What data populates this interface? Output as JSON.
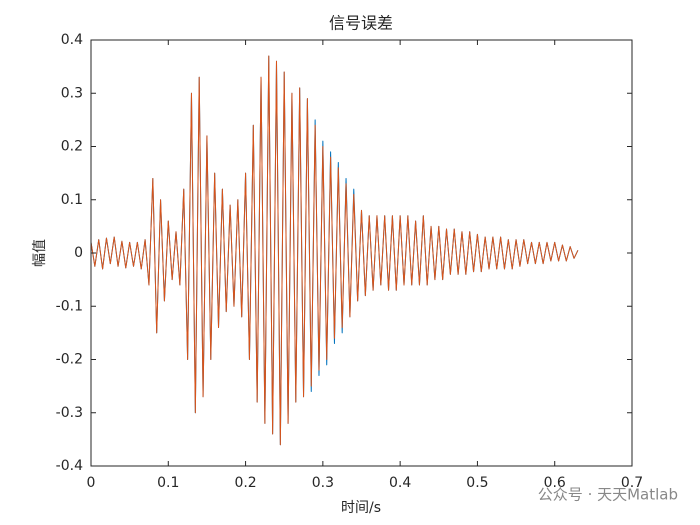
{
  "chart_data": {
    "type": "line",
    "title": "信号误差",
    "xlabel": "时间/s",
    "ylabel": "幅值",
    "watermark": "公众号 · 天天Matlab",
    "xlim": [
      0,
      0.7
    ],
    "xticks": [
      0,
      0.1,
      0.2,
      0.3,
      0.4,
      0.5,
      0.6,
      0.7
    ],
    "ylim": [
      -0.4,
      0.4
    ],
    "yticks": [
      -0.4,
      -0.3,
      -0.2,
      -0.1,
      0,
      0.1,
      0.2,
      0.3,
      0.4
    ],
    "grid": false,
    "x": [
      0,
      0.005,
      0.01,
      0.015,
      0.02,
      0.025,
      0.03,
      0.035,
      0.04,
      0.045,
      0.05,
      0.055,
      0.06,
      0.065,
      0.07,
      0.075,
      0.08,
      0.085,
      0.09,
      0.095,
      0.1,
      0.105,
      0.11,
      0.115,
      0.12,
      0.125,
      0.13,
      0.135,
      0.14,
      0.145,
      0.15,
      0.155,
      0.16,
      0.165,
      0.17,
      0.175,
      0.18,
      0.185,
      0.19,
      0.195,
      0.2,
      0.205,
      0.21,
      0.215,
      0.22,
      0.225,
      0.23,
      0.235,
      0.24,
      0.245,
      0.25,
      0.255,
      0.26,
      0.265,
      0.27,
      0.275,
      0.28,
      0.285,
      0.29,
      0.295,
      0.3,
      0.305,
      0.31,
      0.315,
      0.32,
      0.325,
      0.33,
      0.335,
      0.34,
      0.345,
      0.35,
      0.355,
      0.36,
      0.365,
      0.37,
      0.375,
      0.38,
      0.385,
      0.39,
      0.395,
      0.4,
      0.405,
      0.41,
      0.415,
      0.42,
      0.425,
      0.43,
      0.435,
      0.44,
      0.445,
      0.45,
      0.455,
      0.46,
      0.465,
      0.47,
      0.475,
      0.48,
      0.485,
      0.49,
      0.495,
      0.5,
      0.505,
      0.51,
      0.515,
      0.52,
      0.525,
      0.53,
      0.535,
      0.54,
      0.545,
      0.55,
      0.555,
      0.56,
      0.565,
      0.57,
      0.575,
      0.58,
      0.585,
      0.59,
      0.595,
      0.6,
      0.605,
      0.61,
      0.615,
      0.62,
      0.625,
      0.63
    ],
    "series": [
      {
        "color": "#0072bd",
        "values": [
          0.02,
          -0.025,
          0.025,
          -0.03,
          0.028,
          -0.02,
          0.03,
          -0.025,
          0.022,
          -0.028,
          0.02,
          -0.025,
          0.02,
          -0.03,
          0.025,
          -0.06,
          0.14,
          -0.15,
          0.1,
          -0.09,
          0.06,
          -0.05,
          0.04,
          -0.06,
          0.12,
          -0.2,
          0.3,
          -0.3,
          0.33,
          -0.27,
          0.22,
          -0.2,
          0.15,
          -0.14,
          0.12,
          -0.11,
          0.09,
          -0.1,
          0.1,
          -0.12,
          0.15,
          -0.2,
          0.24,
          -0.28,
          0.33,
          -0.32,
          0.37,
          -0.34,
          0.36,
          -0.36,
          0.34,
          -0.32,
          0.3,
          -0.28,
          0.31,
          -0.27,
          0.29,
          -0.26,
          0.25,
          -0.23,
          0.21,
          -0.21,
          0.19,
          -0.17,
          0.17,
          -0.15,
          0.14,
          -0.12,
          0.12,
          -0.09,
          0.08,
          -0.08,
          0.07,
          -0.07,
          0.07,
          -0.06,
          0.07,
          -0.07,
          0.07,
          -0.07,
          0.07,
          -0.06,
          0.07,
          -0.06,
          0.06,
          -0.06,
          0.07,
          -0.06,
          0.05,
          -0.05,
          0.05,
          -0.05,
          0.045,
          -0.04,
          0.045,
          -0.04,
          0.04,
          -0.04,
          0.04,
          -0.035,
          0.035,
          -0.035,
          0.03,
          -0.03,
          0.03,
          -0.03,
          0.03,
          -0.03,
          0.025,
          -0.03,
          0.025,
          -0.025,
          0.025,
          -0.02,
          0.02,
          -0.02,
          0.02,
          -0.02,
          0.02,
          -0.015,
          0.02,
          -0.015,
          0.015,
          -0.015,
          0.012,
          -0.01,
          0.005
        ]
      },
      {
        "color": "#d95319",
        "values": [
          0.02,
          -0.025,
          0.025,
          -0.03,
          0.028,
          -0.02,
          0.03,
          -0.025,
          0.022,
          -0.028,
          0.02,
          -0.025,
          0.02,
          -0.03,
          0.025,
          -0.06,
          0.14,
          -0.15,
          0.1,
          -0.09,
          0.06,
          -0.05,
          0.04,
          -0.06,
          0.12,
          -0.2,
          0.3,
          -0.3,
          0.33,
          -0.27,
          0.22,
          -0.2,
          0.15,
          -0.14,
          0.12,
          -0.11,
          0.09,
          -0.1,
          0.1,
          -0.12,
          0.15,
          -0.2,
          0.24,
          -0.28,
          0.33,
          -0.32,
          0.37,
          -0.34,
          0.36,
          -0.36,
          0.34,
          -0.32,
          0.3,
          -0.28,
          0.31,
          -0.27,
          0.29,
          -0.25,
          0.24,
          -0.22,
          0.2,
          -0.2,
          0.18,
          -0.16,
          0.16,
          -0.14,
          0.13,
          -0.12,
          0.11,
          -0.09,
          0.08,
          -0.08,
          0.07,
          -0.07,
          0.07,
          -0.06,
          0.07,
          -0.07,
          0.07,
          -0.07,
          0.07,
          -0.06,
          0.07,
          -0.06,
          0.06,
          -0.06,
          0.07,
          -0.06,
          0.05,
          -0.05,
          0.05,
          -0.05,
          0.045,
          -0.04,
          0.045,
          -0.04,
          0.04,
          -0.04,
          0.04,
          -0.035,
          0.035,
          -0.035,
          0.03,
          -0.03,
          0.03,
          -0.03,
          0.03,
          -0.03,
          0.025,
          -0.03,
          0.025,
          -0.025,
          0.025,
          -0.02,
          0.02,
          -0.02,
          0.02,
          -0.02,
          0.02,
          -0.015,
          0.02,
          -0.015,
          0.015,
          -0.015,
          0.012,
          -0.01,
          0.005
        ]
      }
    ]
  }
}
